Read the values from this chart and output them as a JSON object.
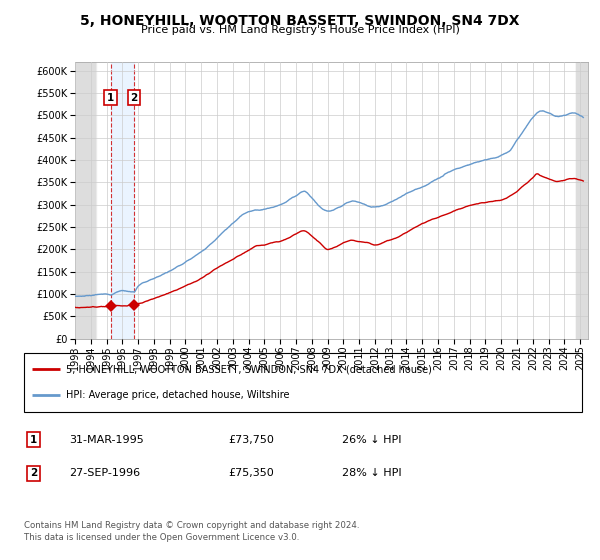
{
  "title": "5, HONEYHILL, WOOTTON BASSETT, SWINDON, SN4 7DX",
  "subtitle": "Price paid vs. HM Land Registry's House Price Index (HPI)",
  "sale1_date": "31-MAR-1995",
  "sale1_price": 73750,
  "sale1_hpi_pct": "26% ↓ HPI",
  "sale2_date": "27-SEP-1996",
  "sale2_price": 75350,
  "sale2_hpi_pct": "28% ↓ HPI",
  "legend_red": "5, HONEYHILL, WOOTTON BASSETT, SWINDON, SN4 7DX (detached house)",
  "legend_blue": "HPI: Average price, detached house, Wiltshire",
  "footer": "Contains HM Land Registry data © Crown copyright and database right 2024.\nThis data is licensed under the Open Government Licence v3.0.",
  "red_color": "#cc0000",
  "blue_color": "#6699cc",
  "bg_color": "#ffffff",
  "grid_color": "#cccccc",
  "sale1_x": 1995.25,
  "sale2_x": 1996.75,
  "ylim_min": 0,
  "ylim_max": 620000,
  "xlim_min": 1993.0,
  "xlim_max": 2025.5,
  "hpi_data": [
    [
      1993.0,
      95000
    ],
    [
      1994.0,
      97000
    ],
    [
      1995.0,
      100000
    ],
    [
      1995.25,
      99500
    ],
    [
      1996.0,
      108000
    ],
    [
      1996.75,
      104500
    ],
    [
      1997.0,
      118000
    ],
    [
      1998.0,
      135000
    ],
    [
      1999.0,
      152000
    ],
    [
      2000.0,
      172000
    ],
    [
      2001.0,
      195000
    ],
    [
      2002.0,
      225000
    ],
    [
      2003.0,
      258000
    ],
    [
      2004.0,
      285000
    ],
    [
      2005.0,
      290000
    ],
    [
      2006.0,
      300000
    ],
    [
      2007.0,
      320000
    ],
    [
      2007.5,
      330000
    ],
    [
      2008.0,
      315000
    ],
    [
      2008.5,
      295000
    ],
    [
      2009.0,
      285000
    ],
    [
      2009.5,
      290000
    ],
    [
      2010.0,
      300000
    ],
    [
      2010.5,
      308000
    ],
    [
      2011.0,
      305000
    ],
    [
      2011.5,
      298000
    ],
    [
      2012.0,
      295000
    ],
    [
      2012.5,
      298000
    ],
    [
      2013.0,
      305000
    ],
    [
      2013.5,
      315000
    ],
    [
      2014.0,
      325000
    ],
    [
      2015.0,
      340000
    ],
    [
      2016.0,
      358000
    ],
    [
      2017.0,
      378000
    ],
    [
      2018.0,
      390000
    ],
    [
      2019.0,
      400000
    ],
    [
      2020.0,
      410000
    ],
    [
      2020.5,
      420000
    ],
    [
      2021.0,
      445000
    ],
    [
      2021.5,
      470000
    ],
    [
      2022.0,
      495000
    ],
    [
      2022.5,
      510000
    ],
    [
      2023.0,
      505000
    ],
    [
      2023.5,
      498000
    ],
    [
      2024.0,
      500000
    ],
    [
      2024.5,
      505000
    ],
    [
      2025.0,
      500000
    ]
  ],
  "red_data": [
    [
      1993.0,
      70000
    ],
    [
      1994.0,
      71000
    ],
    [
      1995.0,
      72000
    ],
    [
      1995.25,
      73750
    ],
    [
      1995.5,
      74500
    ],
    [
      1996.0,
      74000
    ],
    [
      1996.75,
      75350
    ],
    [
      1997.0,
      78000
    ],
    [
      1998.0,
      90000
    ],
    [
      1999.0,
      103000
    ],
    [
      2000.0,
      118000
    ],
    [
      2001.0,
      135000
    ],
    [
      2002.0,
      158000
    ],
    [
      2003.0,
      178000
    ],
    [
      2004.0,
      198000
    ],
    [
      2004.5,
      208000
    ],
    [
      2005.0,
      210000
    ],
    [
      2005.5,
      215000
    ],
    [
      2006.0,
      218000
    ],
    [
      2006.5,
      225000
    ],
    [
      2007.0,
      235000
    ],
    [
      2007.5,
      242000
    ],
    [
      2008.0,
      230000
    ],
    [
      2008.5,
      215000
    ],
    [
      2009.0,
      200000
    ],
    [
      2009.5,
      205000
    ],
    [
      2010.0,
      215000
    ],
    [
      2010.5,
      220000
    ],
    [
      2011.0,
      218000
    ],
    [
      2011.5,
      215000
    ],
    [
      2012.0,
      210000
    ],
    [
      2012.5,
      215000
    ],
    [
      2013.0,
      222000
    ],
    [
      2013.5,
      228000
    ],
    [
      2014.0,
      238000
    ],
    [
      2014.5,
      248000
    ],
    [
      2015.0,
      258000
    ],
    [
      2015.5,
      265000
    ],
    [
      2016.0,
      272000
    ],
    [
      2016.5,
      278000
    ],
    [
      2017.0,
      285000
    ],
    [
      2017.5,
      292000
    ],
    [
      2018.0,
      298000
    ],
    [
      2018.5,
      302000
    ],
    [
      2019.0,
      305000
    ],
    [
      2019.5,
      308000
    ],
    [
      2020.0,
      310000
    ],
    [
      2020.5,
      318000
    ],
    [
      2021.0,
      330000
    ],
    [
      2021.5,
      345000
    ],
    [
      2022.0,
      360000
    ],
    [
      2022.3,
      370000
    ],
    [
      2022.5,
      365000
    ],
    [
      2023.0,
      358000
    ],
    [
      2023.5,
      352000
    ],
    [
      2024.0,
      355000
    ],
    [
      2024.5,
      358000
    ],
    [
      2025.0,
      355000
    ]
  ]
}
